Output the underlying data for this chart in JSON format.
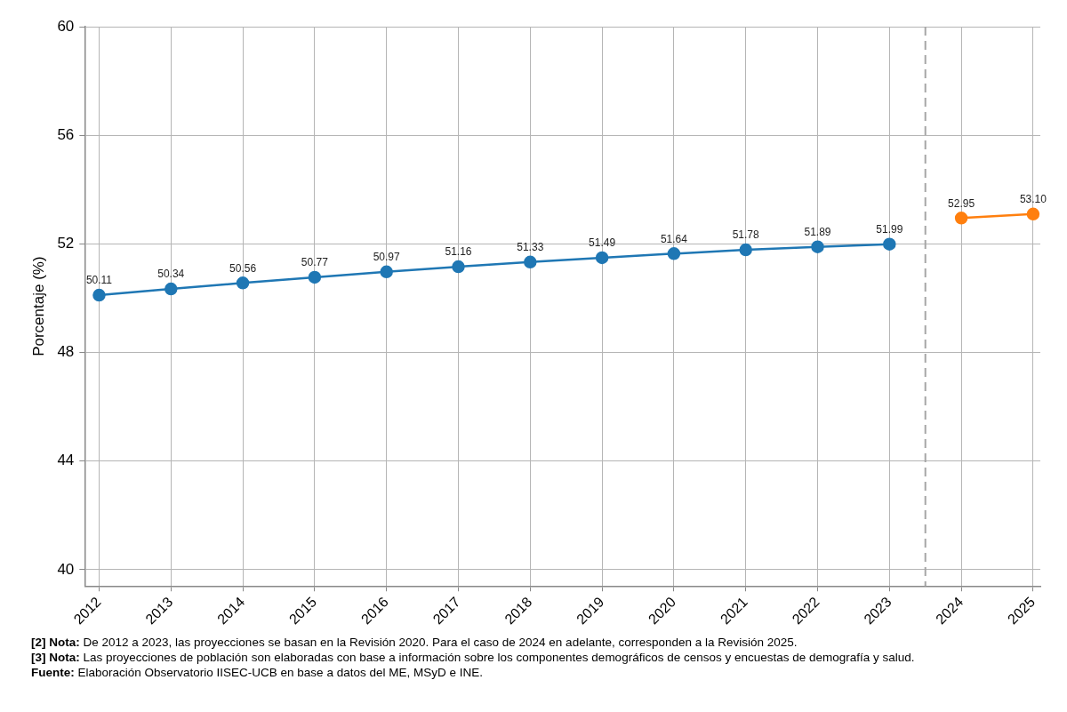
{
  "chart_data": {
    "type": "line",
    "ylabel": "Porcentaje (%)",
    "xlim": [
      2011.8,
      2025.1
    ],
    "xticks": [
      2012,
      2013,
      2014,
      2015,
      2016,
      2017,
      2018,
      2019,
      2020,
      2021,
      2022,
      2023,
      2024,
      2025
    ],
    "ylim": [
      39.4,
      60
    ],
    "yticks": [
      40,
      44,
      48,
      52,
      56,
      60
    ],
    "series": [
      {
        "color": "#1f77b4",
        "x": [
          2012,
          2013,
          2014,
          2015,
          2016,
          2017,
          2018,
          2019,
          2020,
          2021,
          2022,
          2023
        ],
        "values": [
          50.11,
          50.34,
          50.56,
          50.77,
          50.97,
          51.16,
          51.33,
          51.49,
          51.64,
          51.78,
          51.89,
          51.99
        ],
        "value_labels": [
          "50.11",
          "50.34",
          "50.56",
          "50.77",
          "50.97",
          "51.16",
          "51.33",
          "51.49",
          "51.64",
          "51.78",
          "51.89",
          "51.99"
        ]
      },
      {
        "color": "#ff7f0e",
        "x": [
          2024,
          2025
        ],
        "values": [
          52.95,
          53.1
        ],
        "value_labels": [
          "52.95",
          "53.10"
        ]
      }
    ],
    "ref_lines": [
      {
        "axis": "x",
        "value": 2023.5,
        "color": "#a6a6a6",
        "line_style": "dashed"
      }
    ],
    "grid": true,
    "legend": false,
    "marker": "circle",
    "line_style": "solid",
    "annotations": [
      "[2] Nota: De 2012 a 2023, las proyecciones se basan en la Revisión 2020. Para el caso de 2024 en adelante, corresponden a la Revisión 2025.",
      "[3] Nota: Las proyecciones de población son elaboradas con base a información sobre los componentes demográficos de censos y encuestas de demografía y salud.",
      "Fuente: Elaboración Observatorio IISEC-UCB en base a datos del ME, MSyD e INE."
    ]
  }
}
